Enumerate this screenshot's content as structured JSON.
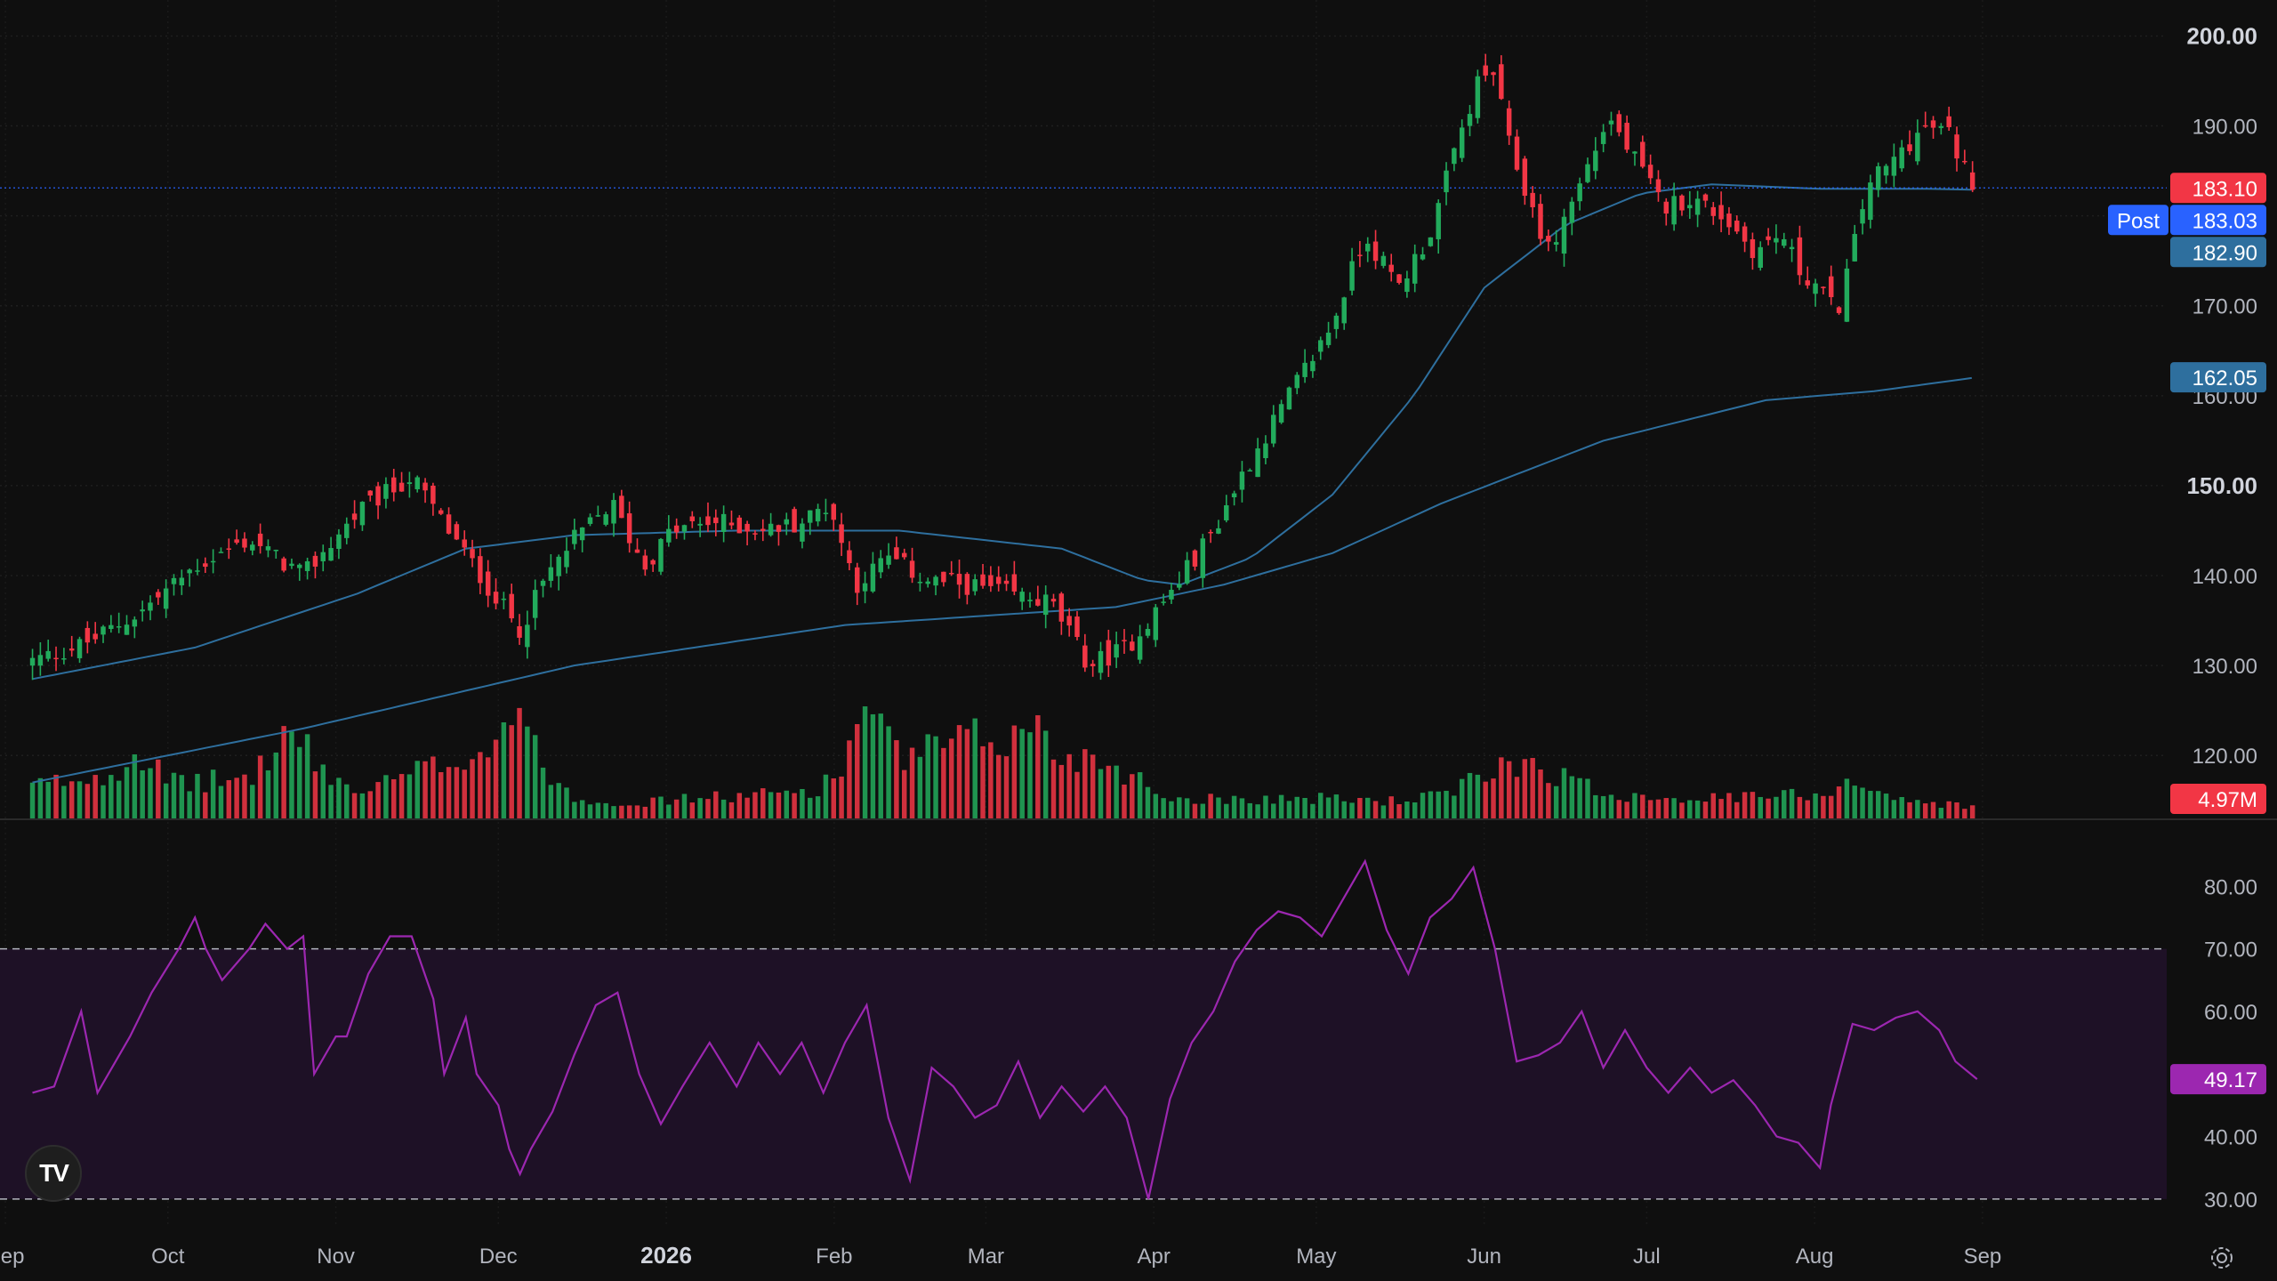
{
  "chart_data": {
    "type": "candlestick",
    "panes": [
      "price",
      "volume",
      "rsi"
    ],
    "price_axis": {
      "ticks": [
        "200.00",
        "190.00",
        "180.00",
        "170.00",
        "160.00",
        "150.00",
        "140.00",
        "130.00",
        "120.00"
      ],
      "bold_ticks": [
        "200.00",
        "150.00"
      ],
      "range": [
        113,
        204
      ]
    },
    "price_labels": {
      "last": {
        "text": "183.10",
        "value": 183.1,
        "color": "#f23645"
      },
      "post_tag": "Post",
      "post": {
        "text": "183.03",
        "value": 183.03,
        "color": "#2962ff"
      },
      "ma_fast": {
        "text": "182.90",
        "value": 182.9,
        "color": "#2e6f9e"
      },
      "ma_slow": {
        "text": "162.05",
        "value": 162.05,
        "color": "#2e6f9e"
      },
      "volume": {
        "text": "4.97M",
        "color": "#f23645"
      },
      "rsi": {
        "text": "49.17",
        "color": "#9c27b0"
      }
    },
    "rsi_axis": {
      "ticks": [
        "80.00",
        "70.00",
        "60.00",
        "50.00",
        "40.00",
        "30.00"
      ],
      "range": [
        28,
        88
      ],
      "bands": [
        70,
        30
      ]
    },
    "time_axis": {
      "ticks": [
        {
          "label": "Sep",
          "day": -5
        },
        {
          "label": "Oct",
          "day": 25
        },
        {
          "label": "Nov",
          "day": 56
        },
        {
          "label": "Dec",
          "day": 86
        },
        {
          "label": "2026",
          "day": 117,
          "bold": true
        },
        {
          "label": "Feb",
          "day": 148
        },
        {
          "label": "Mar",
          "day": 176
        },
        {
          "label": "Apr",
          "day": 207
        },
        {
          "label": "May",
          "day": 237
        },
        {
          "label": "Jun",
          "day": 268
        },
        {
          "label": "Jul",
          "day": 298
        },
        {
          "label": "Aug",
          "day": 329
        },
        {
          "label": "Sep",
          "day": 360
        }
      ],
      "range": [
        -6,
        394
      ]
    },
    "colors": {
      "up": "#22ab5c",
      "down": "#f23645",
      "ma": "#2e6f9e",
      "rsi": "#9c27b0",
      "background": "#0f0f0f"
    },
    "close_anchors": [
      [
        0,
        130.5
      ],
      [
        10,
        132.5
      ],
      [
        20,
        136
      ],
      [
        30,
        141
      ],
      [
        40,
        144
      ],
      [
        50,
        140
      ],
      [
        60,
        147
      ],
      [
        70,
        151
      ],
      [
        78,
        144
      ],
      [
        85,
        138
      ],
      [
        90,
        134
      ],
      [
        95,
        140
      ],
      [
        100,
        144
      ],
      [
        107,
        148
      ],
      [
        113,
        141
      ],
      [
        118,
        145
      ],
      [
        126,
        146
      ],
      [
        135,
        145
      ],
      [
        142,
        146
      ],
      [
        147,
        148
      ],
      [
        152,
        139
      ],
      [
        158,
        142
      ],
      [
        165,
        139.5
      ],
      [
        172,
        139
      ],
      [
        180,
        138
      ],
      [
        188,
        137
      ],
      [
        195,
        130
      ],
      [
        202,
        132
      ],
      [
        210,
        138
      ],
      [
        218,
        145
      ],
      [
        224,
        152
      ],
      [
        232,
        160
      ],
      [
        240,
        168
      ],
      [
        246,
        178
      ],
      [
        252,
        172
      ],
      [
        258,
        178
      ],
      [
        263,
        188
      ],
      [
        267,
        195
      ],
      [
        270,
        196
      ],
      [
        272,
        189
      ],
      [
        276,
        182
      ],
      [
        280,
        176
      ],
      [
        286,
        184
      ],
      [
        291,
        191
      ],
      [
        296,
        186
      ],
      [
        301,
        181
      ],
      [
        306,
        182
      ],
      [
        312,
        180
      ],
      [
        318,
        176
      ],
      [
        323,
        178
      ],
      [
        326,
        174
      ],
      [
        330,
        172
      ],
      [
        333,
        169
      ],
      [
        336,
        176
      ],
      [
        339,
        184
      ],
      [
        342,
        185
      ],
      [
        346,
        188
      ],
      [
        350,
        190
      ],
      [
        354,
        189
      ],
      [
        356,
        186
      ],
      [
        358,
        184
      ],
      [
        359,
        183.1
      ]
    ],
    "ma_fast_anchors": [
      [
        0,
        128.5
      ],
      [
        30,
        132
      ],
      [
        60,
        138
      ],
      [
        80,
        143
      ],
      [
        100,
        144.5
      ],
      [
        130,
        145
      ],
      [
        160,
        145
      ],
      [
        190,
        143
      ],
      [
        205,
        139.5
      ],
      [
        212,
        139
      ],
      [
        225,
        142
      ],
      [
        240,
        149
      ],
      [
        255,
        160
      ],
      [
        268,
        172
      ],
      [
        283,
        179
      ],
      [
        297,
        182.5
      ],
      [
        310,
        183.5
      ],
      [
        330,
        183
      ],
      [
        350,
        183
      ],
      [
        359,
        182.9
      ]
    ],
    "ma_slow_anchors": [
      [
        0,
        117
      ],
      [
        50,
        123
      ],
      [
        100,
        130
      ],
      [
        150,
        134.5
      ],
      [
        200,
        136.5
      ],
      [
        220,
        139
      ],
      [
        240,
        142.5
      ],
      [
        260,
        148
      ],
      [
        290,
        155
      ],
      [
        320,
        159.5
      ],
      [
        340,
        160.5
      ],
      [
        359,
        162.05
      ]
    ],
    "volume_anchors": [
      [
        0,
        6.5
      ],
      [
        14,
        9
      ],
      [
        20,
        14
      ],
      [
        25,
        7
      ],
      [
        40,
        8
      ],
      [
        48,
        18
      ],
      [
        52,
        11
      ],
      [
        60,
        5
      ],
      [
        78,
        12
      ],
      [
        85,
        15
      ],
      [
        90,
        25
      ],
      [
        92,
        14
      ],
      [
        100,
        4
      ],
      [
        112,
        3
      ],
      [
        120,
        4
      ],
      [
        132,
        4.5
      ],
      [
        145,
        6
      ],
      [
        150,
        10
      ],
      [
        152,
        23
      ],
      [
        156,
        18
      ],
      [
        160,
        12
      ],
      [
        175,
        16
      ],
      [
        182,
        16
      ],
      [
        185,
        20
      ],
      [
        188,
        13
      ],
      [
        197,
        12
      ],
      [
        201,
        10
      ],
      [
        210,
        4
      ],
      [
        240,
        4
      ],
      [
        252,
        3.5
      ],
      [
        262,
        5
      ],
      [
        268,
        9
      ],
      [
        275,
        12
      ],
      [
        290,
        5
      ],
      [
        310,
        4
      ],
      [
        330,
        5
      ],
      [
        336,
        8
      ],
      [
        345,
        3.5
      ],
      [
        359,
        2.5
      ]
    ],
    "volume_range_m": [
      0,
      34
    ],
    "rsi_anchors": [
      [
        0,
        47
      ],
      [
        4,
        48
      ],
      [
        9,
        60
      ],
      [
        12,
        47
      ],
      [
        18,
        56
      ],
      [
        22,
        63
      ],
      [
        27,
        70
      ],
      [
        30,
        75
      ],
      [
        32,
        70
      ],
      [
        35,
        65
      ],
      [
        40,
        70
      ],
      [
        43,
        74
      ],
      [
        47,
        70
      ],
      [
        50,
        72
      ],
      [
        52,
        50
      ],
      [
        56,
        56
      ],
      [
        58,
        56
      ],
      [
        62,
        66
      ],
      [
        66,
        72
      ],
      [
        70,
        72
      ],
      [
        74,
        62
      ],
      [
        76,
        50
      ],
      [
        80,
        59
      ],
      [
        82,
        50
      ],
      [
        86,
        45
      ],
      [
        88,
        38
      ],
      [
        90,
        34
      ],
      [
        92,
        38
      ],
      [
        96,
        44
      ],
      [
        100,
        53
      ],
      [
        104,
        61
      ],
      [
        108,
        63
      ],
      [
        112,
        50
      ],
      [
        116,
        42
      ],
      [
        120,
        48
      ],
      [
        125,
        55
      ],
      [
        130,
        48
      ],
      [
        134,
        55
      ],
      [
        138,
        50
      ],
      [
        142,
        55
      ],
      [
        146,
        47
      ],
      [
        150,
        55
      ],
      [
        154,
        61
      ],
      [
        158,
        43
      ],
      [
        162,
        33
      ],
      [
        166,
        51
      ],
      [
        170,
        48
      ],
      [
        174,
        43
      ],
      [
        178,
        45
      ],
      [
        182,
        52
      ],
      [
        186,
        43
      ],
      [
        190,
        48
      ],
      [
        194,
        44
      ],
      [
        198,
        48
      ],
      [
        202,
        43
      ],
      [
        206,
        30
      ],
      [
        210,
        46
      ],
      [
        214,
        55
      ],
      [
        218,
        60
      ],
      [
        222,
        68
      ],
      [
        226,
        73
      ],
      [
        230,
        76
      ],
      [
        234,
        75
      ],
      [
        238,
        72
      ],
      [
        242,
        78
      ],
      [
        246,
        84
      ],
      [
        250,
        73
      ],
      [
        254,
        66
      ],
      [
        258,
        75
      ],
      [
        262,
        78
      ],
      [
        266,
        83
      ],
      [
        270,
        70
      ],
      [
        274,
        52
      ],
      [
        278,
        53
      ],
      [
        282,
        55
      ],
      [
        286,
        60
      ],
      [
        290,
        51
      ],
      [
        294,
        57
      ],
      [
        298,
        51
      ],
      [
        302,
        47
      ],
      [
        306,
        51
      ],
      [
        310,
        47
      ],
      [
        314,
        49
      ],
      [
        318,
        45
      ],
      [
        322,
        40
      ],
      [
        326,
        39
      ],
      [
        330,
        35
      ],
      [
        332,
        45
      ],
      [
        336,
        58
      ],
      [
        340,
        57
      ],
      [
        344,
        59
      ],
      [
        348,
        60
      ],
      [
        352,
        57
      ],
      [
        355,
        52
      ],
      [
        359,
        49.17
      ]
    ]
  },
  "footer": {
    "settings_icon": "gear-icon",
    "logo_text": "TV"
  }
}
